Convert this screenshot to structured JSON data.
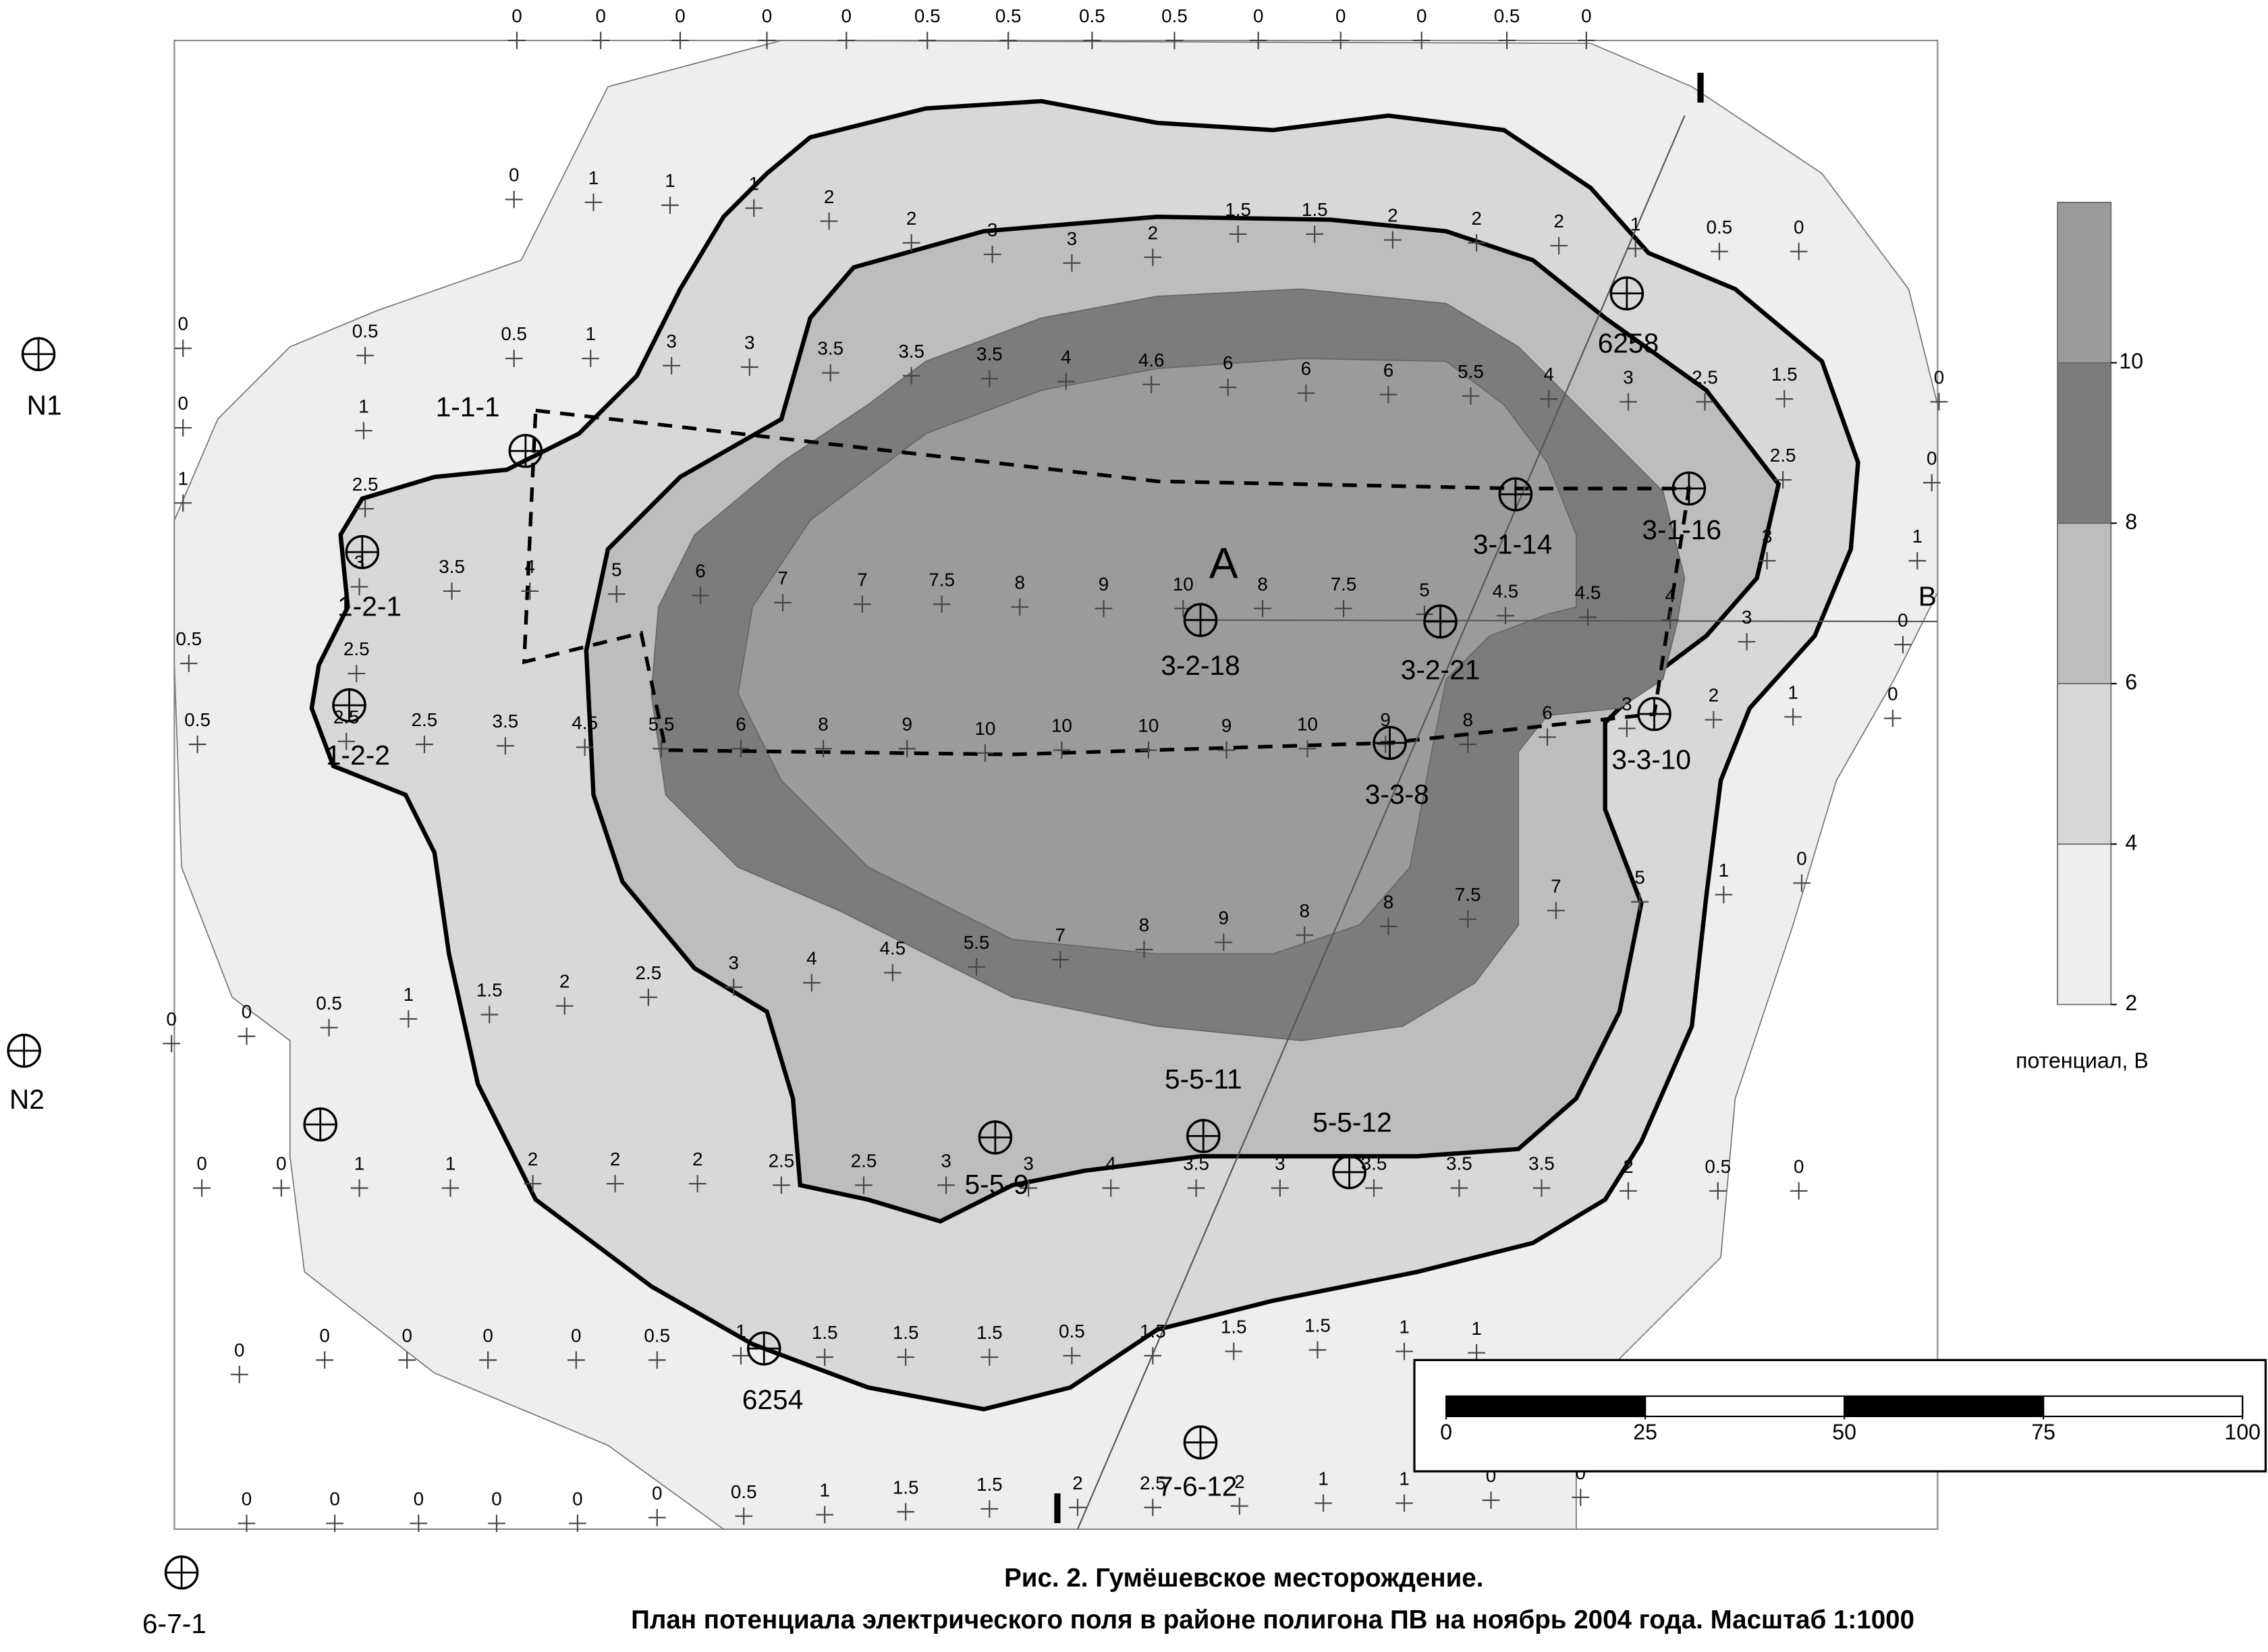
{
  "map": {
    "caption": [
      "Рис. 2. Гумёшевское месторождение.",
      "План потенциала электрического поля в районе полигона ПВ на ноябрь 2004 года. Масштаб 1:1000"
    ],
    "measurements": [
      0,
      0,
      0,
      0,
      0,
      0.5,
      0.5,
      0.5,
      0.5,
      0,
      0,
      0,
      0.5,
      0,
      0,
      1,
      1,
      1,
      2,
      2,
      3,
      3,
      2,
      1.5,
      1.5,
      2,
      2,
      2,
      1,
      0.5,
      0,
      0,
      0.5,
      0.5,
      1,
      3,
      3,
      3.5,
      3.5,
      3.5,
      4,
      4.6,
      6,
      6,
      6,
      5.5,
      4,
      3,
      2.5,
      1.5,
      0,
      0,
      1,
      1,
      2.5,
      2.5,
      0,
      1,
      0.5,
      0.5,
      3,
      3.5,
      4,
      5,
      6,
      7,
      7,
      7.5,
      8,
      9,
      10,
      8,
      7.5,
      5,
      4.5,
      4.5,
      4,
      3,
      3,
      0,
      2.5,
      2.5,
      2.5,
      3.5,
      4.5,
      5.5,
      6,
      8,
      9,
      10,
      10,
      10,
      9,
      10,
      9,
      8,
      6,
      3,
      2,
      1,
      0,
      5,
      1,
      0,
      7,
      7.5,
      8,
      8,
      9,
      8,
      7,
      5.5,
      4.5,
      4,
      3,
      2.5,
      2,
      1.5,
      1,
      0.5,
      0,
      0,
      0,
      0,
      1,
      1,
      2,
      2,
      2,
      2.5,
      2.5,
      3,
      3,
      4,
      3.5,
      3,
      3.5,
      3.5,
      3.5,
      2,
      0.5,
      0,
      0,
      0,
      0,
      0,
      0,
      0.5,
      1,
      1.5,
      1.5,
      1.5,
      0.5,
      1.5,
      1.5,
      1.5,
      1,
      1,
      0,
      0,
      0,
      0,
      0,
      0,
      0.5,
      1,
      1.5,
      1.5,
      2,
      2.5,
      2,
      1,
      1,
      0,
      0
    ],
    "wells": [
      "N1",
      "N2",
      "1-1-1",
      "1-2-1",
      "1-2-2",
      "6258",
      "3-1-14",
      "3-1-16",
      "3-2-18",
      "3-2-21",
      "3-3-8",
      "3-3-10",
      "5-5-11",
      "5-5-12",
      "5-5-9",
      "6254",
      "7-6-12",
      "6-7-1",
      null
    ],
    "markers": [
      "A",
      "B",
      "I",
      "I"
    ],
    "legend": {
      "label": "потенциал, В",
      "range": [
        2,
        12
      ],
      "ticks": [
        2,
        4,
        6,
        8,
        10
      ],
      "colors": [
        "#eeeeee",
        "#d8d8d8",
        "#bdbdbd",
        "#7c7c7c",
        "#9b9b9b"
      ]
    },
    "scale_bar": {
      "range": [
        0,
        100
      ],
      "ticks": [
        0,
        25,
        50,
        75,
        100
      ]
    }
  }
}
